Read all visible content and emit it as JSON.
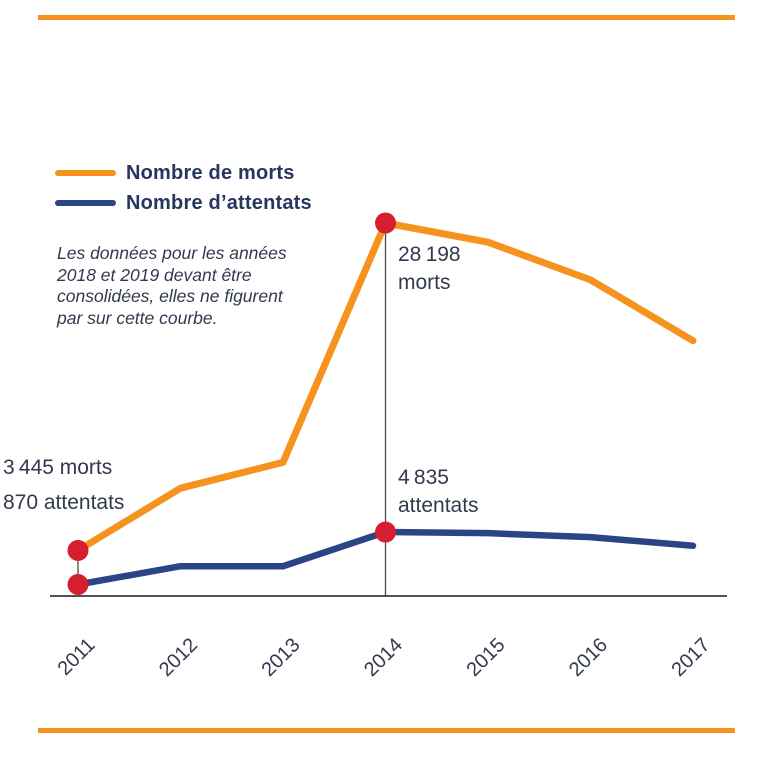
{
  "colors": {
    "orange": "#F6921E",
    "navy": "#2A4484",
    "red": "#D51F30",
    "ink": "#333A4F",
    "ink_navy": "#26365E",
    "axis": "#3A3A3A",
    "connector": "#4A4A4A"
  },
  "legend": {
    "items": [
      {
        "label": "Nombre de morts",
        "color": "#F6921E"
      },
      {
        "label": "Nombre d’attentats",
        "color": "#2A4484"
      }
    ]
  },
  "note": {
    "lines": [
      "Les données pour les années",
      "2018 et 2019 devant être",
      "consolidées, elles ne figurent",
      "par sur cette courbe."
    ]
  },
  "annotations": {
    "left_morts": "3 445 morts",
    "left_attentats": "870 attentats",
    "peak_value": "28 198",
    "peak_unit": "morts",
    "mid_value": "4 835",
    "mid_unit": "attentats"
  },
  "chart_data": {
    "type": "line",
    "title": "",
    "xlabel": "",
    "ylabel": "",
    "categories": [
      "2011",
      "2012",
      "2013",
      "2014",
      "2015",
      "2016",
      "2017"
    ],
    "series": [
      {
        "name": "Nombre de morts",
        "color": "#F6921E",
        "values": [
          3445,
          8150,
          10100,
          28198,
          26750,
          23900,
          19300
        ],
        "labeled_points": {
          "2011": 3445,
          "2014": 28198
        }
      },
      {
        "name": "Nombre d'attentats",
        "color": "#2A4484",
        "values": [
          870,
          2250,
          2250,
          4835,
          4750,
          4450,
          3800
        ],
        "labeled_points": {
          "2011": 870,
          "2014": 4835
        }
      }
    ],
    "highlight_years": [
      "2011",
      "2014"
    ],
    "marker_color": "#D51F30",
    "ylim": [
      0,
      28198
    ],
    "grid": false,
    "legend_position": "top-left",
    "note": "Les données pour les années 2018 et 2019 devant être consolidées, elles ne figurent par sur cette courbe."
  }
}
